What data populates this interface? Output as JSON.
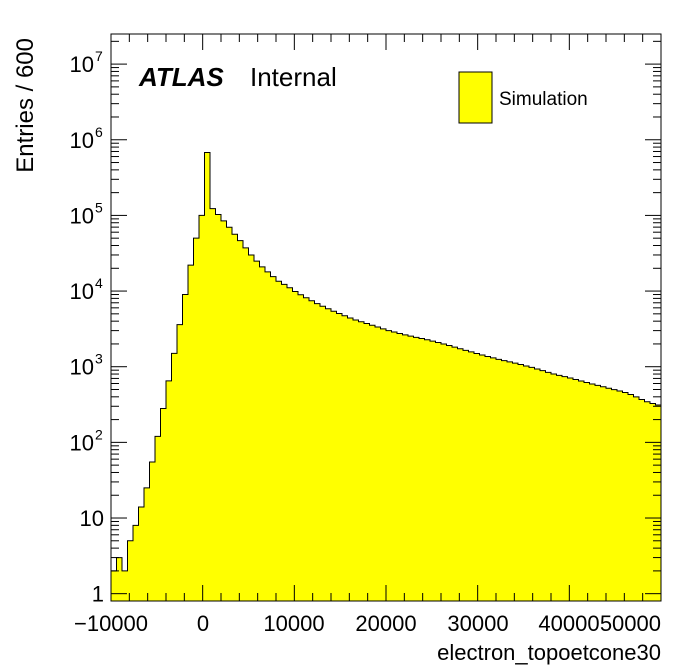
{
  "chart_data": {
    "type": "bar",
    "style": "step-histogram",
    "title": "",
    "xlabel": "electron_topoetcone30",
    "ylabel": "Entries / 600",
    "bin_width": 600,
    "xlim": [
      -10000,
      50000
    ],
    "ylim": [
      0.8,
      25000000
    ],
    "y_log_scale": true,
    "grid": false,
    "x_ticks": [
      -10000,
      0,
      10000,
      20000,
      30000,
      40000,
      50000
    ],
    "x_tick_labels": [
      "−10000",
      "0",
      "10000",
      "20000",
      "30000",
      "40000",
      "50000"
    ],
    "y_ticks": [
      1,
      10,
      100,
      1000,
      10000,
      100000,
      1000000,
      10000000
    ],
    "y_tick_labels": [
      {
        "base": "1",
        "exp": ""
      },
      {
        "base": "10",
        "exp": ""
      },
      {
        "base": "10",
        "exp": "2"
      },
      {
        "base": "10",
        "exp": "3"
      },
      {
        "base": "10",
        "exp": "4"
      },
      {
        "base": "10",
        "exp": "5"
      },
      {
        "base": "10",
        "exp": "6"
      },
      {
        "base": "10",
        "exp": "7"
      }
    ],
    "label_bold": "ATLAS",
    "label_text": "Internal",
    "series": [
      {
        "name": "Simulation",
        "color": "#ffff00",
        "anchors": [
          [
            -10000,
            2
          ],
          [
            -9400,
            3
          ],
          [
            -8800,
            2
          ],
          [
            -8200,
            5
          ],
          [
            -7600,
            8
          ],
          [
            -7000,
            14
          ],
          [
            -6400,
            25
          ],
          [
            -5800,
            55
          ],
          [
            -5200,
            120
          ],
          [
            -4600,
            280
          ],
          [
            -4000,
            650
          ],
          [
            -3400,
            1500
          ],
          [
            -2800,
            3600
          ],
          [
            -2200,
            9000
          ],
          [
            -1600,
            22000
          ],
          [
            -1000,
            50000
          ],
          [
            -400,
            100000
          ],
          [
            -200,
            130000
          ],
          [
            0,
            1550000
          ],
          [
            600,
            130000
          ],
          [
            1200,
            110000
          ],
          [
            1800,
            90000
          ],
          [
            2400,
            75000
          ],
          [
            3000,
            60000
          ],
          [
            3600,
            50000
          ],
          [
            4200,
            40000
          ],
          [
            5000,
            30000
          ],
          [
            6000,
            22000
          ],
          [
            7000,
            17000
          ],
          [
            8000,
            13500
          ],
          [
            9000,
            11500
          ],
          [
            10000,
            9500
          ],
          [
            12000,
            7000
          ],
          [
            14000,
            5400
          ],
          [
            16000,
            4300
          ],
          [
            18000,
            3600
          ],
          [
            20000,
            3000
          ],
          [
            22000,
            2600
          ],
          [
            24000,
            2300
          ],
          [
            26000,
            2000
          ],
          [
            28000,
            1700
          ],
          [
            30000,
            1450
          ],
          [
            32000,
            1250
          ],
          [
            34000,
            1100
          ],
          [
            36000,
            950
          ],
          [
            38000,
            800
          ],
          [
            40000,
            700
          ],
          [
            42000,
            600
          ],
          [
            44000,
            520
          ],
          [
            46000,
            450
          ],
          [
            47000,
            400
          ],
          [
            48000,
            350
          ],
          [
            49000,
            320
          ],
          [
            50000,
            300
          ]
        ]
      }
    ]
  }
}
